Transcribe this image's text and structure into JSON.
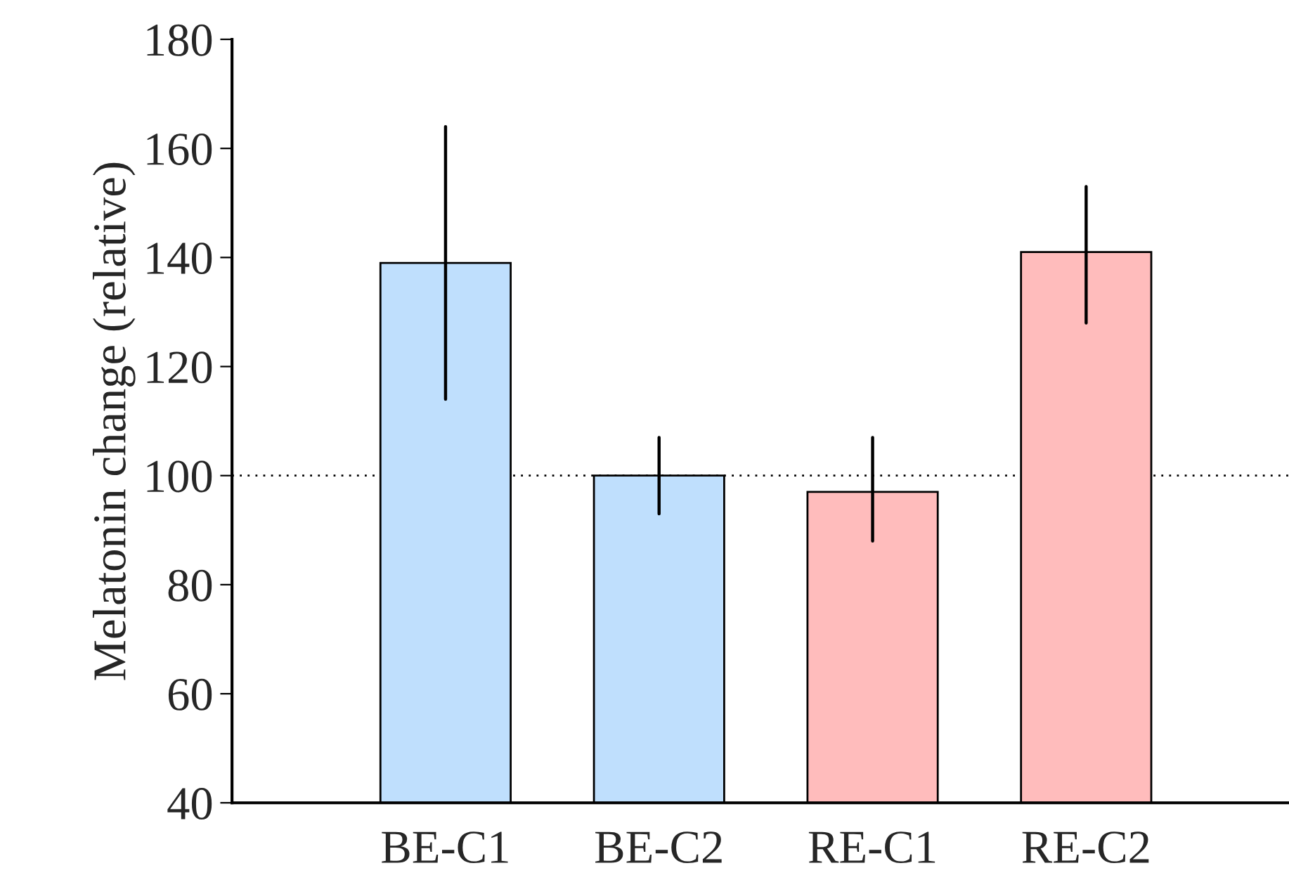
{
  "chart_data": {
    "type": "bar",
    "ylabel": "Melatonin change (relative)",
    "categories": [
      "BE-C1",
      "BE-C2",
      "RE-C1",
      "RE-C2"
    ],
    "values": [
      139,
      100,
      97,
      141
    ],
    "colors": [
      "#bfdffd",
      "#bfdffd",
      "#ffbcbc",
      "#ffbcbc"
    ],
    "errors": [
      [
        114,
        164
      ],
      [
        93,
        107
      ],
      [
        88,
        107
      ],
      [
        128,
        153
      ]
    ],
    "ylim": [
      40,
      180
    ],
    "yticks": [
      40,
      60,
      80,
      100,
      120,
      140,
      160,
      180
    ],
    "ref_lines": [
      {
        "axis": "y",
        "value": 100,
        "color": "#000000",
        "line_style": "dotted"
      }
    ],
    "grid": false,
    "legend": false
  }
}
